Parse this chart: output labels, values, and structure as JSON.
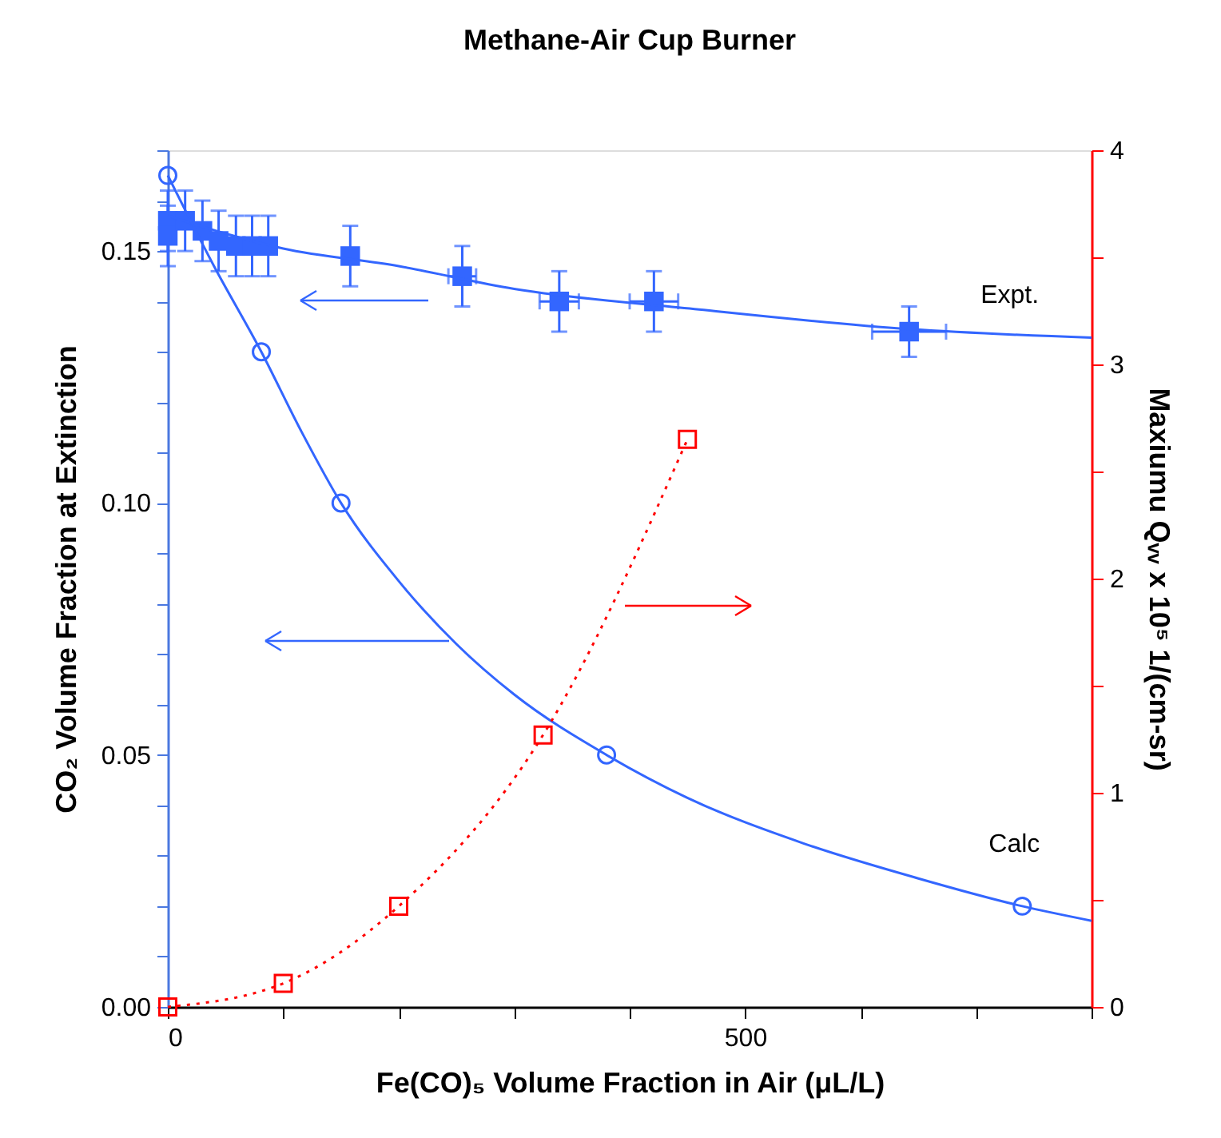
{
  "chart_data": {
    "type": "scatter",
    "title": "Methane-Air Cup Burner",
    "xlabel": "Fe(CO)₅ Volume Fraction in Air (μL/L)",
    "ylabel": "CO₂ Volume Fraction at Extinction",
    "y2label": "Maxiumu Qᵥᵥ x 10⁵ 1/(cm-sr)",
    "xlim": [
      0,
      800
    ],
    "xticks": [
      {
        "value": 0,
        "label": "0"
      },
      {
        "value": 100,
        "label": null
      },
      {
        "value": 200,
        "label": null
      },
      {
        "value": 300,
        "label": null
      },
      {
        "value": 400,
        "label": null
      },
      {
        "value": 500,
        "label": "500"
      },
      {
        "value": 600,
        "label": null
      },
      {
        "value": 700,
        "label": null
      },
      {
        "value": 800,
        "label": null
      }
    ],
    "ylim": [
      0,
      0.17
    ],
    "yticks": [
      {
        "value": 0,
        "label": "0.00"
      },
      {
        "value": 0.01,
        "label": null
      },
      {
        "value": 0.02,
        "label": null
      },
      {
        "value": 0.03,
        "label": null
      },
      {
        "value": 0.04,
        "label": null
      },
      {
        "value": 0.05,
        "label": "0.05"
      },
      {
        "value": 0.06,
        "label": null
      },
      {
        "value": 0.07,
        "label": null
      },
      {
        "value": 0.08,
        "label": null
      },
      {
        "value": 0.09,
        "label": null
      },
      {
        "value": 0.1,
        "label": "0.10"
      },
      {
        "value": 0.11,
        "label": null
      },
      {
        "value": 0.12,
        "label": null
      },
      {
        "value": 0.13,
        "label": null
      },
      {
        "value": 0.14,
        "label": null
      },
      {
        "value": 0.15,
        "label": "0.15"
      },
      {
        "value": 0.16,
        "label": null
      },
      {
        "value": 0.17,
        "label": null
      }
    ],
    "y2lim": [
      0,
      4
    ],
    "y2ticks": [
      0,
      {
        "value": 0.5,
        "label": null
      },
      1,
      {
        "value": 1.5,
        "label": null
      },
      2,
      {
        "value": 2.5,
        "label": null
      },
      3,
      {
        "value": 3.5,
        "label": null
      },
      4
    ],
    "grid": false,
    "series": [
      {
        "name": "Expt.",
        "marker": "square",
        "color": "#3366ff",
        "x": [
          0,
          0,
          15,
          30,
          44,
          59,
          73,
          87,
          158,
          255,
          339,
          421,
          642
        ],
        "values": [
          0.156,
          0.153,
          0.156,
          0.154,
          0.152,
          0.151,
          0.151,
          0.151,
          0.149,
          0.145,
          0.14,
          0.14,
          0.134
        ],
        "errors": [
          0.006,
          0.006,
          0.006,
          0.006,
          0.006,
          0.006,
          0.006,
          0.006,
          0.006,
          0.006,
          0.006,
          0.006,
          0.005
        ],
        "xerrors": [
          null,
          null,
          null,
          null,
          null,
          null,
          null,
          null,
          null,
          12,
          17,
          21,
          32
        ]
      },
      {
        "type": "line",
        "marker": "none",
        "line_style": "solid",
        "color": "#3366ff",
        "x": [
          0,
          100,
          200,
          300,
          460,
          642,
          800
        ],
        "values": [
          0.157,
          0.1505,
          0.147,
          0.1425,
          0.1384,
          0.1345,
          0.1328
        ]
      },
      {
        "name": "Calc",
        "marker": "circle",
        "color": "#3366ff",
        "x": [
          0,
          81,
          150,
          380,
          740
        ],
        "values": [
          0.165,
          0.13,
          0.1,
          0.05,
          0.02
        ]
      },
      {
        "type": "line",
        "marker": "none",
        "line_style": "solid",
        "color": "#3366ff",
        "x": [
          0,
          40,
          81,
          115,
          150,
          200,
          250,
          300,
          380,
          450,
          550,
          650,
          740,
          800
        ],
        "values": [
          0.165,
          0.147,
          0.13,
          0.1145,
          0.1,
          0.0845,
          0.072,
          0.062,
          0.05,
          0.0415,
          0.0325,
          0.0255,
          0.02,
          0.0171
        ]
      },
      {
        "type": "line",
        "axis": "y2",
        "marker": "square",
        "line_style": "dotted",
        "color": "#ff0000",
        "x": [
          0,
          100,
          200,
          325,
          450
        ],
        "values": [
          0,
          0.11,
          0.47,
          1.27,
          2.65
        ]
      }
    ]
  }
}
